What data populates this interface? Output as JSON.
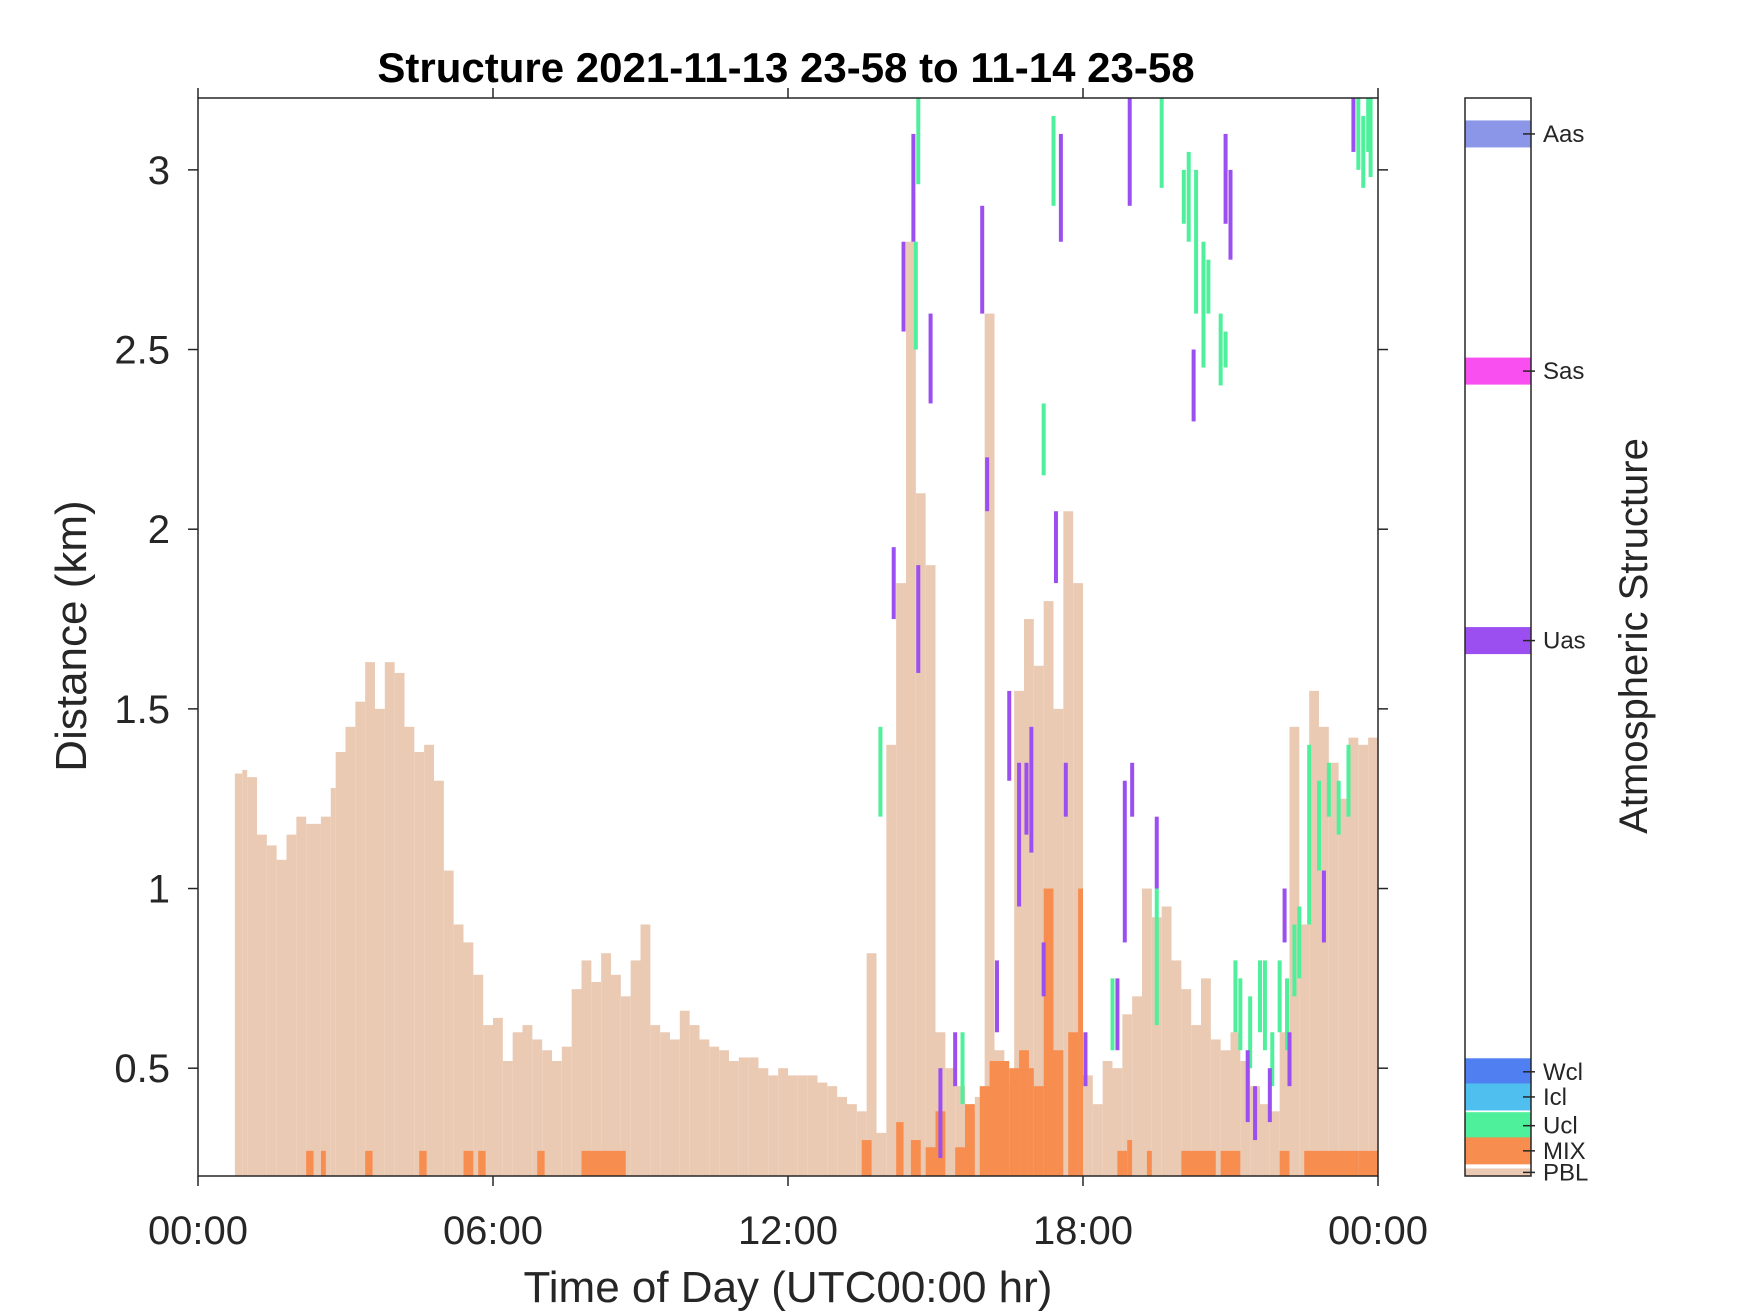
{
  "chart_data": {
    "type": "bar",
    "title": "Structure 2021-11-13 23-58 to 11-14 23-58",
    "xlabel": "Time of Day (UTC00:00 hr)",
    "ylabel": "Distance (km)",
    "xlim": [
      0,
      24
    ],
    "ylim": [
      0.2,
      3.2
    ],
    "x_ticks": [
      "00:00",
      "06:00",
      "12:00",
      "18:00",
      "00:00"
    ],
    "x_tick_values": [
      0,
      6,
      12,
      18,
      24
    ],
    "y_ticks": [
      "0.5",
      "1",
      "1.5",
      "2",
      "2.5",
      "3"
    ],
    "y_tick_values": [
      0.5,
      1,
      1.5,
      2,
      2.5,
      3
    ],
    "colorbar": {
      "label": "Atmospheric Structure",
      "classes": [
        {
          "name": "Aas",
          "color": "#8b96e8",
          "level": 3.1
        },
        {
          "name": "Sas",
          "color": "#fa4ff0",
          "level": 2.44
        },
        {
          "name": "Uas",
          "color": "#9b4ff0",
          "level": 1.69
        },
        {
          "name": "Wcl",
          "color": "#4f7ff0",
          "level": 0.49
        },
        {
          "name": "Icl",
          "color": "#4fbff0",
          "level": 0.42
        },
        {
          "name": "Ucl",
          "color": "#4ff09b",
          "level": 0.34
        },
        {
          "name": "MIX",
          "color": "#f78d4f",
          "level": 0.27
        },
        {
          "name": "PBL",
          "color": "#ebcab4",
          "level": 0.21
        }
      ]
    },
    "pbl_profile": [
      [
        0.75,
        1.32
      ],
      [
        0.9,
        1.33
      ],
      [
        1.0,
        1.31
      ],
      [
        1.2,
        1.15
      ],
      [
        1.4,
        1.12
      ],
      [
        1.6,
        1.08
      ],
      [
        1.8,
        1.15
      ],
      [
        2.0,
        1.2
      ],
      [
        2.2,
        1.18
      ],
      [
        2.5,
        1.2
      ],
      [
        2.7,
        1.28
      ],
      [
        2.8,
        1.38
      ],
      [
        3.0,
        1.45
      ],
      [
        3.2,
        1.52
      ],
      [
        3.4,
        1.63
      ],
      [
        3.6,
        1.5
      ],
      [
        3.8,
        1.63
      ],
      [
        4.0,
        1.6
      ],
      [
        4.2,
        1.45
      ],
      [
        4.4,
        1.38
      ],
      [
        4.6,
        1.4
      ],
      [
        4.8,
        1.3
      ],
      [
        5.0,
        1.05
      ],
      [
        5.2,
        0.9
      ],
      [
        5.4,
        0.85
      ],
      [
        5.6,
        0.76
      ],
      [
        5.8,
        0.62
      ],
      [
        6.0,
        0.64
      ],
      [
        6.2,
        0.52
      ],
      [
        6.4,
        0.6
      ],
      [
        6.6,
        0.62
      ],
      [
        6.8,
        0.58
      ],
      [
        7.0,
        0.55
      ],
      [
        7.2,
        0.52
      ],
      [
        7.4,
        0.56
      ],
      [
        7.6,
        0.72
      ],
      [
        7.8,
        0.8
      ],
      [
        8.0,
        0.74
      ],
      [
        8.2,
        0.82
      ],
      [
        8.4,
        0.76
      ],
      [
        8.6,
        0.7
      ],
      [
        8.8,
        0.8
      ],
      [
        9.0,
        0.9
      ],
      [
        9.2,
        0.62
      ],
      [
        9.4,
        0.6
      ],
      [
        9.6,
        0.58
      ],
      [
        9.8,
        0.66
      ],
      [
        10.0,
        0.62
      ],
      [
        10.2,
        0.58
      ],
      [
        10.4,
        0.56
      ],
      [
        10.6,
        0.55
      ],
      [
        10.8,
        0.52
      ],
      [
        11.0,
        0.53
      ],
      [
        11.2,
        0.53
      ],
      [
        11.4,
        0.5
      ],
      [
        11.6,
        0.48
      ],
      [
        11.8,
        0.5
      ],
      [
        12.0,
        0.48
      ],
      [
        12.2,
        0.48
      ],
      [
        12.4,
        0.48
      ],
      [
        12.6,
        0.46
      ],
      [
        12.8,
        0.45
      ],
      [
        13.0,
        0.42
      ],
      [
        13.2,
        0.4
      ],
      [
        13.4,
        0.38
      ],
      [
        13.6,
        0.82
      ],
      [
        13.8,
        0.32
      ],
      [
        14.0,
        1.4
      ],
      [
        14.2,
        1.85
      ],
      [
        14.4,
        2.8
      ],
      [
        14.6,
        2.1
      ],
      [
        14.8,
        1.9
      ],
      [
        15.0,
        0.6
      ],
      [
        15.2,
        0.5
      ],
      [
        15.4,
        0.45
      ],
      [
        15.6,
        0.38
      ],
      [
        15.8,
        0.42
      ],
      [
        16.0,
        2.6
      ],
      [
        16.2,
        0.55
      ],
      [
        16.4,
        0.45
      ],
      [
        16.6,
        1.55
      ],
      [
        16.8,
        1.75
      ],
      [
        17.0,
        1.62
      ],
      [
        17.2,
        1.8
      ],
      [
        17.4,
        1.5
      ],
      [
        17.6,
        2.05
      ],
      [
        17.8,
        1.85
      ],
      [
        18.0,
        0.48
      ],
      [
        18.2,
        0.4
      ],
      [
        18.4,
        0.52
      ],
      [
        18.6,
        0.5
      ],
      [
        18.8,
        0.65
      ],
      [
        19.0,
        0.7
      ],
      [
        19.2,
        1.0
      ],
      [
        19.4,
        0.92
      ],
      [
        19.6,
        0.95
      ],
      [
        19.8,
        0.8
      ],
      [
        20.0,
        0.72
      ],
      [
        20.2,
        0.62
      ],
      [
        20.4,
        0.75
      ],
      [
        20.6,
        0.58
      ],
      [
        20.8,
        0.55
      ],
      [
        21.0,
        0.6
      ],
      [
        21.2,
        0.52
      ],
      [
        21.4,
        0.45
      ],
      [
        21.6,
        0.4
      ],
      [
        21.8,
        0.38
      ],
      [
        22.0,
        0.6
      ],
      [
        22.2,
        1.45
      ],
      [
        22.4,
        0.9
      ],
      [
        22.6,
        1.55
      ],
      [
        22.8,
        1.45
      ],
      [
        23.0,
        1.35
      ],
      [
        23.2,
        1.25
      ],
      [
        23.4,
        1.42
      ],
      [
        23.6,
        1.4
      ],
      [
        23.8,
        1.42
      ],
      [
        24.0,
        1.5
      ]
    ],
    "mix_segments": [
      [
        2.2,
        2.35,
        0.27
      ],
      [
        2.5,
        2.6,
        0.27
      ],
      [
        3.4,
        3.55,
        0.27
      ],
      [
        4.5,
        4.65,
        0.27
      ],
      [
        5.4,
        5.6,
        0.27
      ],
      [
        5.7,
        5.85,
        0.27
      ],
      [
        6.9,
        7.05,
        0.27
      ],
      [
        7.8,
        8.7,
        0.27
      ],
      [
        13.5,
        13.7,
        0.3
      ],
      [
        14.2,
        14.35,
        0.35
      ],
      [
        14.5,
        14.7,
        0.3
      ],
      [
        14.8,
        15.0,
        0.28
      ],
      [
        15.0,
        15.2,
        0.38
      ],
      [
        15.4,
        15.6,
        0.28
      ],
      [
        15.6,
        15.8,
        0.4
      ],
      [
        15.9,
        16.1,
        0.45
      ],
      [
        16.1,
        16.5,
        0.52
      ],
      [
        16.5,
        16.7,
        0.5
      ],
      [
        16.7,
        16.9,
        0.55
      ],
      [
        16.9,
        17.0,
        0.5
      ],
      [
        17.0,
        17.2,
        0.45
      ],
      [
        17.2,
        17.4,
        1.0
      ],
      [
        17.4,
        17.6,
        0.55
      ],
      [
        17.7,
        17.9,
        0.6
      ],
      [
        17.9,
        18.0,
        1.0
      ],
      [
        18.7,
        18.9,
        0.27
      ],
      [
        18.9,
        19.0,
        0.3
      ],
      [
        19.3,
        19.4,
        0.27
      ],
      [
        20.0,
        20.7,
        0.27
      ],
      [
        20.8,
        21.2,
        0.27
      ],
      [
        22.0,
        22.2,
        0.27
      ],
      [
        22.5,
        23.6,
        0.27
      ],
      [
        23.6,
        24.0,
        0.27
      ]
    ],
    "ucl_segments": [
      [
        13.88,
        1.2,
        1.45
      ],
      [
        14.6,
        2.5,
        2.8
      ],
      [
        14.65,
        2.96,
        3.2
      ],
      [
        15.55,
        0.4,
        0.6
      ],
      [
        17.2,
        2.15,
        2.35
      ],
      [
        17.4,
        2.9,
        3.15
      ],
      [
        18.6,
        0.55,
        0.75
      ],
      [
        19.5,
        0.62,
        1.0
      ],
      [
        19.6,
        2.95,
        3.2
      ],
      [
        20.05,
        2.85,
        3.0
      ],
      [
        20.15,
        2.8,
        3.05
      ],
      [
        20.3,
        2.6,
        3.0
      ],
      [
        20.45,
        2.45,
        2.8
      ],
      [
        20.55,
        2.6,
        2.75
      ],
      [
        20.8,
        2.4,
        2.6
      ],
      [
        20.9,
        2.45,
        2.55
      ],
      [
        21.1,
        0.6,
        0.8
      ],
      [
        21.2,
        0.55,
        0.75
      ],
      [
        21.4,
        0.5,
        0.7
      ],
      [
        21.6,
        0.6,
        0.8
      ],
      [
        21.7,
        0.55,
        0.8
      ],
      [
        21.85,
        0.45,
        0.6
      ],
      [
        22.0,
        0.6,
        0.8
      ],
      [
        22.15,
        0.55,
        0.75
      ],
      [
        22.3,
        0.7,
        0.9
      ],
      [
        22.4,
        0.75,
        0.95
      ],
      [
        22.6,
        0.9,
        1.4
      ],
      [
        22.8,
        1.05,
        1.3
      ],
      [
        23.0,
        1.2,
        1.35
      ],
      [
        23.2,
        1.15,
        1.3
      ],
      [
        23.4,
        1.2,
        1.4
      ],
      [
        23.6,
        3.0,
        3.2
      ],
      [
        23.7,
        2.95,
        3.15
      ],
      [
        23.8,
        3.05,
        3.2
      ],
      [
        23.85,
        2.98,
        3.2
      ]
    ],
    "uas_segments": [
      [
        14.15,
        1.75,
        1.95
      ],
      [
        14.35,
        2.55,
        2.8
      ],
      [
        14.55,
        2.8,
        3.1
      ],
      [
        14.65,
        1.6,
        1.9
      ],
      [
        14.9,
        2.35,
        2.6
      ],
      [
        15.1,
        0.25,
        0.5
      ],
      [
        15.4,
        0.45,
        0.6
      ],
      [
        15.95,
        2.6,
        2.9
      ],
      [
        16.05,
        2.05,
        2.2
      ],
      [
        16.25,
        0.6,
        0.8
      ],
      [
        16.5,
        1.3,
        1.55
      ],
      [
        16.7,
        0.95,
        1.35
      ],
      [
        16.85,
        1.15,
        1.35
      ],
      [
        16.95,
        1.1,
        1.45
      ],
      [
        17.2,
        0.7,
        0.85
      ],
      [
        17.45,
        1.85,
        2.05
      ],
      [
        17.55,
        2.8,
        3.1
      ],
      [
        17.65,
        1.2,
        1.35
      ],
      [
        18.05,
        0.45,
        0.6
      ],
      [
        18.7,
        0.55,
        0.75
      ],
      [
        18.85,
        0.85,
        1.3
      ],
      [
        18.95,
        2.9,
        3.2
      ],
      [
        19.0,
        1.2,
        1.35
      ],
      [
        19.5,
        1.0,
        1.2
      ],
      [
        20.25,
        2.3,
        2.5
      ],
      [
        20.9,
        2.85,
        3.1
      ],
      [
        21.0,
        2.75,
        3.0
      ],
      [
        21.35,
        0.35,
        0.55
      ],
      [
        21.5,
        0.3,
        0.45
      ],
      [
        21.8,
        0.35,
        0.5
      ],
      [
        22.1,
        0.85,
        1.0
      ],
      [
        22.2,
        0.45,
        0.6
      ],
      [
        22.9,
        0.85,
        1.05
      ],
      [
        23.5,
        3.05,
        3.2
      ]
    ]
  }
}
